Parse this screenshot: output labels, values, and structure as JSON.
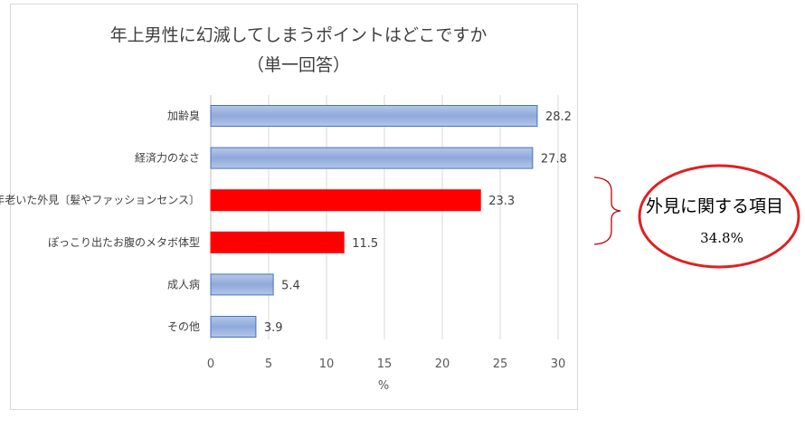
{
  "chart_data": {
    "type": "bar",
    "orientation": "horizontal",
    "title": "年上男性に幻滅してしまうポイントはどこですか",
    "subtitle": "（単一回答）",
    "xlabel": "%",
    "ylabel": "",
    "xlim": [
      0,
      30
    ],
    "xticks": [
      0,
      5,
      10,
      15,
      20,
      25,
      30
    ],
    "grid": "vertical",
    "categories": [
      "加齢臭",
      "経済力のなさ",
      "年老いた外見〔髪やファッションセンス〕",
      "ぽっこり出たお腹のメタボ体型",
      "成人病",
      "その他"
    ],
    "values": [
      28.2,
      27.8,
      23.3,
      11.5,
      5.4,
      3.9
    ],
    "data_labels": [
      "28.2",
      "27.8",
      "23.3",
      "11.5",
      "5.4",
      "3.9"
    ],
    "bar_colors": [
      "#8ea9db",
      "#8ea9db",
      "#ff0000",
      "#ff0000",
      "#8ea9db",
      "#8ea9db"
    ],
    "annotation": {
      "text_line1": "外見に関する項目",
      "text_line2": "34.8%",
      "brace_color": "#c00000",
      "ellipse_color": "#e02020"
    }
  }
}
